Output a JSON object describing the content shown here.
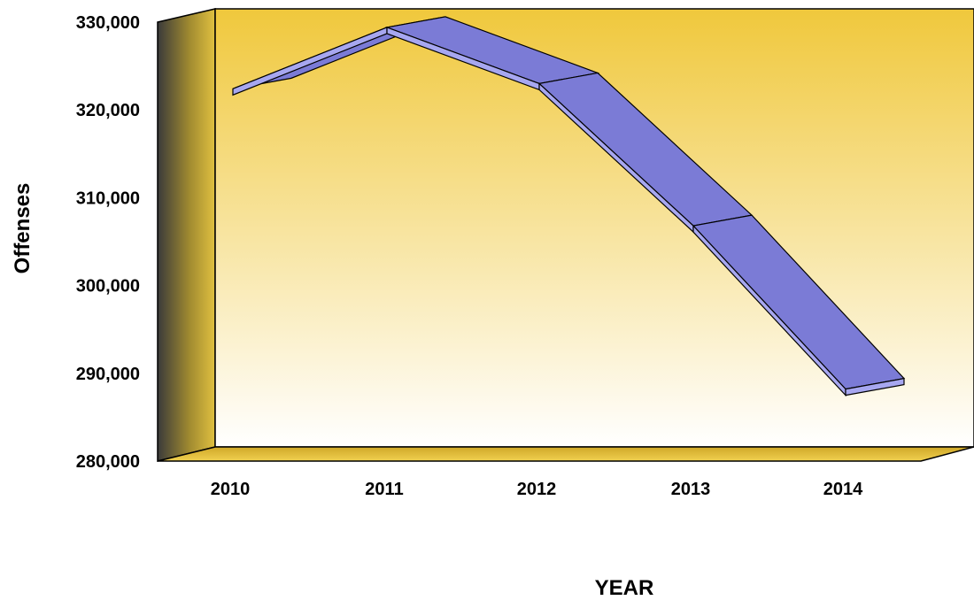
{
  "chart_data": {
    "type": "line",
    "title": "",
    "xlabel": "YEAR",
    "ylabel": "Offenses",
    "categories": [
      "2010",
      "2011",
      "2012",
      "2013",
      "2014"
    ],
    "series": [
      {
        "values": [
          322000,
          329000,
          322600,
          306400,
          287800
        ]
      }
    ],
    "ylim": [
      280000,
      330000
    ],
    "yticks": [
      280000,
      290000,
      300000,
      310000,
      320000,
      330000
    ],
    "ytick_labels": [
      "280,000",
      "290,000",
      "300,000",
      "310,000",
      "320,000",
      "330,000"
    ],
    "grid": false,
    "legend": "none",
    "style": "3d-ribbon",
    "colors": {
      "ribbon_top": "#7b7bd6",
      "ribbon_front": "#a7a7f0",
      "wall_gradient_top": "#f0c83c",
      "wall_gradient_bottom": "#ffffff",
      "outline": "#000000"
    }
  }
}
